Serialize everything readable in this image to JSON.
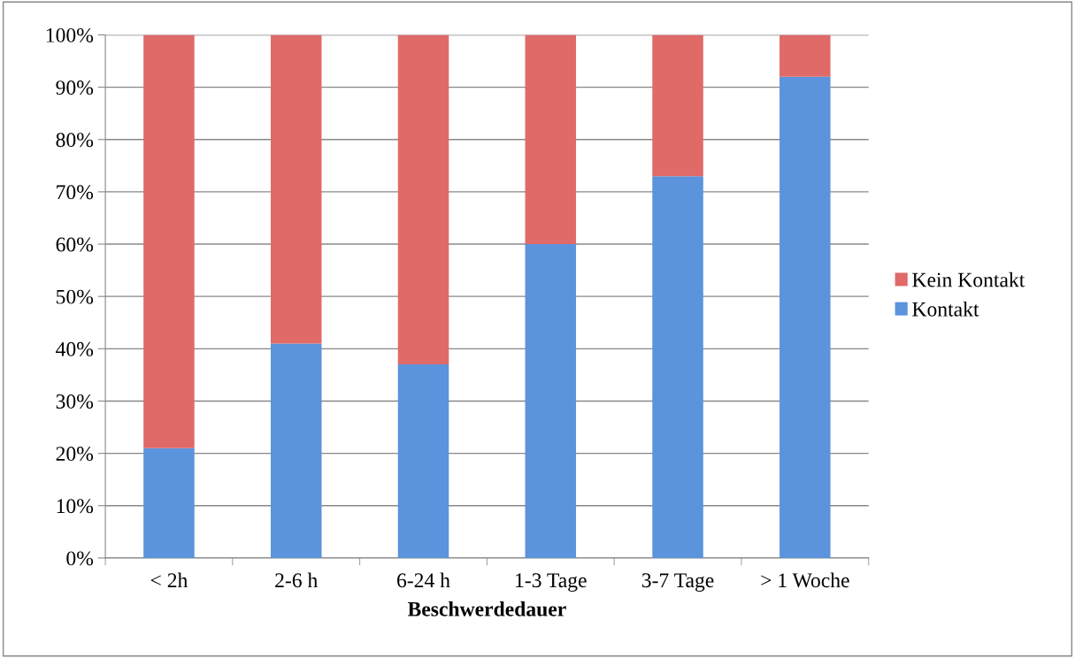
{
  "chart_data": {
    "type": "bar",
    "stacked": true,
    "xlabel": "Beschwerdedauer",
    "categories": [
      "< 2h",
      "2-6 h",
      "6-24 h",
      "1-3 Tage",
      "3-7 Tage",
      "> 1 Woche"
    ],
    "series": [
      {
        "name": "Kontakt",
        "color": "#5b93dc",
        "values": [
          21,
          41,
          37,
          60,
          73,
          92
        ]
      },
      {
        "name": "Kein Kontakt",
        "color": "#e06a68",
        "values": [
          79,
          59,
          63,
          40,
          27,
          8
        ]
      }
    ],
    "ylim": [
      0,
      100
    ],
    "yticks": [
      {
        "value": 0,
        "label": "0%"
      },
      {
        "value": 10,
        "label": "10%"
      },
      {
        "value": 20,
        "label": "20%"
      },
      {
        "value": 30,
        "label": "30%"
      },
      {
        "value": 40,
        "label": "40%"
      },
      {
        "value": 50,
        "label": "50%"
      },
      {
        "value": 60,
        "label": "60%"
      },
      {
        "value": 70,
        "label": "70%"
      },
      {
        "value": 80,
        "label": "80%"
      },
      {
        "value": 90,
        "label": "90%"
      },
      {
        "value": 100,
        "label": "100%"
      }
    ],
    "grid": "y",
    "legend": "right"
  }
}
